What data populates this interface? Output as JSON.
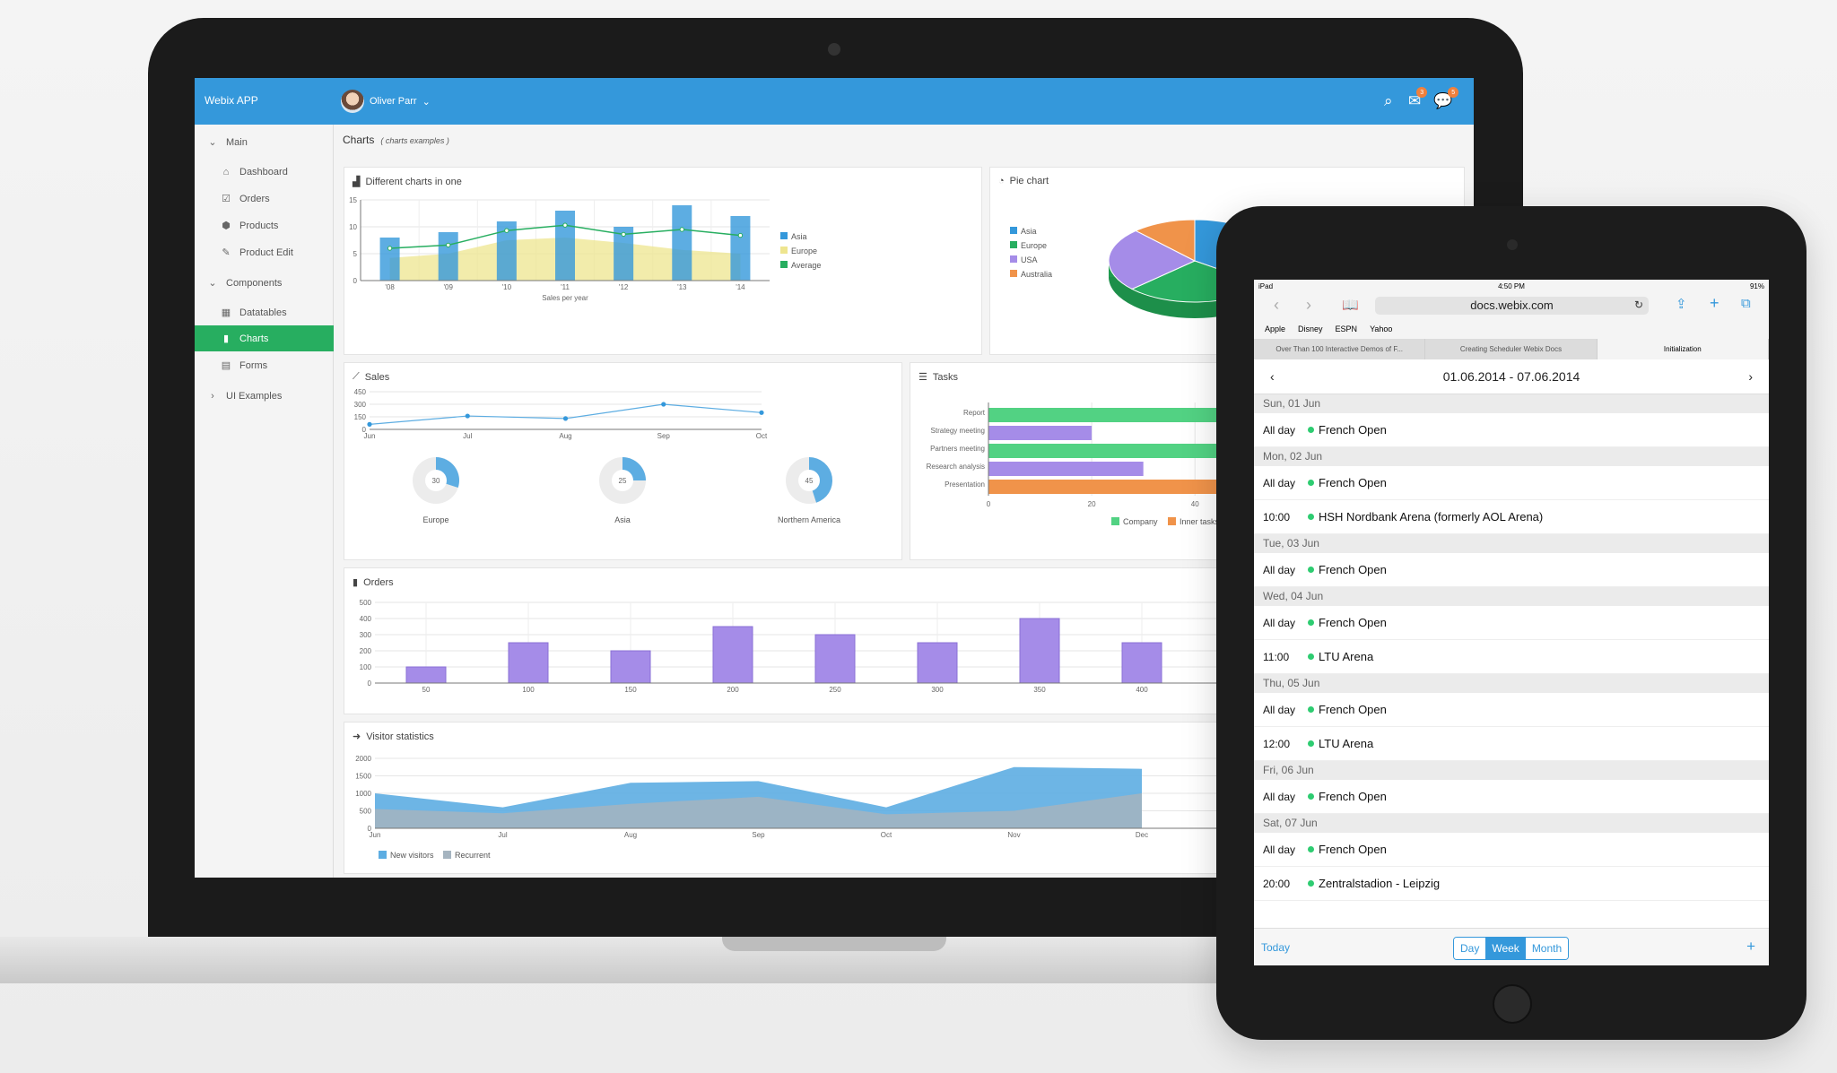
{
  "laptop": {
    "app_title": "Webix APP",
    "user_name": "Oliver Parr",
    "mail_badge": "3",
    "chat_badge": "5",
    "sidebar": [
      {
        "label": "Main",
        "icon": "chevron-down-icon"
      },
      {
        "label": "Dashboard",
        "icon": "home-icon"
      },
      {
        "label": "Orders",
        "icon": "checkbox-icon"
      },
      {
        "label": "Products",
        "icon": "cube-icon"
      },
      {
        "label": "Product Edit",
        "icon": "edit-icon"
      },
      {
        "label": "Components",
        "icon": "chevron-down-icon"
      },
      {
        "label": "Datatables",
        "icon": "table-icon"
      },
      {
        "label": "Charts",
        "icon": "bar-chart-icon"
      },
      {
        "label": "Forms",
        "icon": "list-icon"
      },
      {
        "label": "UI Examples",
        "icon": "chevron-right-icon"
      }
    ],
    "page_title": "Charts",
    "page_subtitle": "( charts examples )",
    "panels": {
      "combined": "Different charts in one",
      "pie": "Pie chart",
      "sales": "Sales",
      "tasks": "Tasks",
      "orders": "Orders",
      "visitors": "Visitor statistics"
    },
    "colors": {
      "blue": "#3498db",
      "green": "#27ae60",
      "purple": "#a58ce8",
      "orange": "#f0934a",
      "yellow": "#eee58f"
    }
  },
  "chart_data": [
    {
      "type": "bar",
      "title": "Different charts in one",
      "xlabel": "Sales per year",
      "categories": [
        "'08",
        "'09",
        "'10",
        "'11",
        "'12",
        "'13",
        "'14"
      ],
      "ylim": [
        0,
        15
      ],
      "yticks": [
        "0",
        "5",
        "10",
        "15"
      ],
      "series": [
        {
          "name": "Asia",
          "values": [
            8,
            9,
            11,
            13,
            10,
            14,
            12
          ]
        },
        {
          "name": "Europe",
          "values": [
            4.2,
            5,
            7.5,
            8,
            7,
            5.7,
            5
          ]
        },
        {
          "name": "Average",
          "values": [
            6,
            6.6,
            9.3,
            10.3,
            8.6,
            9.5,
            8.4
          ]
        }
      ]
    },
    {
      "type": "pie",
      "title": "Pie chart",
      "categories": [
        "Asia",
        "Europe",
        "USA",
        "Australia"
      ],
      "values": [
        35,
        28,
        25,
        12
      ]
    },
    {
      "type": "line",
      "title": "Sales",
      "categories": [
        "Jun",
        "Jul",
        "Aug",
        "Sep",
        "Oct"
      ],
      "values": [
        60,
        160,
        130,
        300,
        200
      ],
      "ylim": [
        0,
        450
      ],
      "yticks": [
        "0",
        "150",
        "300",
        "450"
      ],
      "donuts": [
        {
          "label": "Europe",
          "value": 30
        },
        {
          "label": "Asia",
          "value": 25
        },
        {
          "label": "Northern America",
          "value": 45
        }
      ]
    },
    {
      "type": "bar",
      "title": "Tasks",
      "categories": [
        "Report",
        "Strategy meeting",
        "Partners meeting",
        "Research analysis",
        "Presentation"
      ],
      "xticks": [
        "0",
        "20",
        "40"
      ],
      "series": [
        {
          "name": "Company",
          "values": [
            90,
            20,
            80,
            30,
            70
          ]
        },
        {
          "name": "Inner tasks",
          "values": [
            0,
            0,
            0,
            0,
            0
          ]
        }
      ]
    },
    {
      "type": "bar",
      "title": "Orders",
      "categories": [
        "50",
        "100",
        "150",
        "200",
        "250",
        "300",
        "350",
        "400"
      ],
      "values": [
        100,
        250,
        200,
        350,
        300,
        250,
        400,
        250
      ],
      "ylim": [
        0,
        500
      ],
      "yticks": [
        "0",
        "100",
        "200",
        "300",
        "400",
        "500"
      ]
    },
    {
      "type": "area",
      "title": "Visitor statistics",
      "categories": [
        "Jun",
        "Jul",
        "Aug",
        "Sep",
        "Oct",
        "Nov",
        "Dec"
      ],
      "ylim": [
        0,
        2000
      ],
      "yticks": [
        "0",
        "500",
        "1000",
        "1500",
        "2000"
      ],
      "series": [
        {
          "name": "New visitors",
          "values": [
            1000,
            600,
            1300,
            1350,
            600,
            1750,
            1700
          ]
        },
        {
          "name": "Recurrent",
          "values": [
            550,
            430,
            700,
            900,
            400,
            500,
            1000
          ]
        }
      ]
    }
  ],
  "ipad": {
    "status_left": "iPad",
    "status_time": "4:50 PM",
    "status_right": "91%",
    "url": "docs.webix.com",
    "favorites": [
      "Apple",
      "Disney",
      "ESPN",
      "Yahoo"
    ],
    "tabs": [
      "Over Than 100 Interactive Demos of F...",
      "Creating Scheduler Webix Docs",
      "Initialization"
    ],
    "week_range": "01.06.2014 - 07.06.2014",
    "days": [
      {
        "head": "Sun, 01 Jun",
        "events": [
          {
            "time": "All day",
            "title": "French Open"
          }
        ]
      },
      {
        "head": "Mon, 02 Jun",
        "events": [
          {
            "time": "All day",
            "title": "French Open"
          },
          {
            "time": "10:00",
            "title": "HSH Nordbank Arena (formerly AOL Arena)"
          }
        ]
      },
      {
        "head": "Tue, 03 Jun",
        "events": [
          {
            "time": "All day",
            "title": "French Open"
          }
        ]
      },
      {
        "head": "Wed, 04 Jun",
        "events": [
          {
            "time": "All day",
            "title": "French Open"
          },
          {
            "time": "11:00",
            "title": "LTU Arena"
          }
        ]
      },
      {
        "head": "Thu, 05 Jun",
        "events": [
          {
            "time": "All day",
            "title": "French Open"
          },
          {
            "time": "12:00",
            "title": "LTU Arena"
          }
        ]
      },
      {
        "head": "Fri, 06 Jun",
        "events": [
          {
            "time": "All day",
            "title": "French Open"
          }
        ]
      },
      {
        "head": "Sat, 07 Jun",
        "events": [
          {
            "time": "All day",
            "title": "French Open"
          },
          {
            "time": "20:00",
            "title": "Zentralstadion - Leipzig"
          }
        ]
      }
    ],
    "footer": {
      "today": "Today",
      "day": "Day",
      "week": "Week",
      "month": "Month",
      "add": "+"
    }
  }
}
